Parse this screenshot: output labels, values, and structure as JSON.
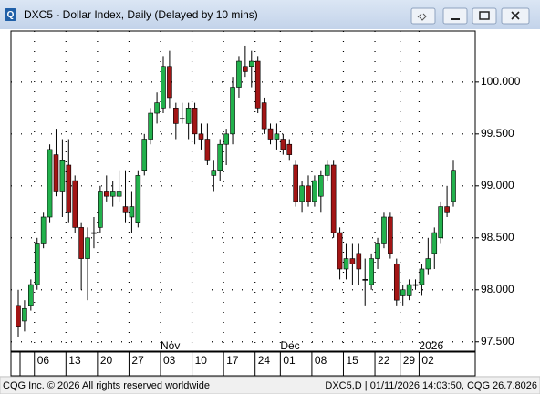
{
  "chart_data": {
    "type": "candlestick",
    "title": "DXC5 - Dollar Index, Daily (Delayed by 10 mins)",
    "categories": [
      null,
      null,
      null,
      "06",
      null,
      null,
      null,
      null,
      "13",
      null,
      null,
      null,
      null,
      "20",
      null,
      null,
      null,
      null,
      "27",
      null,
      null,
      null,
      null,
      "03",
      null,
      null,
      null,
      null,
      "10",
      null,
      null,
      null,
      null,
      "17",
      null,
      null,
      null,
      null,
      "24",
      null,
      null,
      null,
      "01",
      null,
      null,
      null,
      null,
      "08",
      null,
      null,
      null,
      null,
      "15",
      null,
      null,
      null,
      null,
      "22",
      null,
      null,
      null,
      "29",
      null,
      null,
      "02",
      null,
      null,
      null,
      null,
      null
    ],
    "period_labels": [
      null,
      null,
      null,
      null,
      null,
      null,
      null,
      null,
      null,
      null,
      null,
      null,
      null,
      null,
      null,
      null,
      null,
      null,
      null,
      null,
      null,
      null,
      null,
      "Nov",
      null,
      null,
      null,
      null,
      null,
      null,
      null,
      null,
      null,
      null,
      null,
      null,
      null,
      null,
      null,
      null,
      null,
      null,
      "Dec",
      null,
      null,
      null,
      null,
      null,
      null,
      null,
      null,
      null,
      null,
      null,
      null,
      null,
      null,
      null,
      null,
      null,
      null,
      null,
      null,
      null,
      "2026",
      null,
      null,
      null,
      null,
      null
    ],
    "open": [
      97.85,
      97.7,
      97.85,
      98.05,
      98.45,
      98.7,
      99.3,
      98.95,
      99.2,
      99.05,
      98.6,
      98.3,
      98.55,
      98.6,
      98.95,
      98.9,
      98.9,
      98.8,
      98.7,
      98.65,
      99.15,
      99.45,
      99.7,
      99.75,
      100.15,
      99.75,
      99.65,
      99.6,
      99.75,
      99.5,
      99.45,
      99.1,
      99.15,
      99.4,
      99.5,
      99.95,
      100.15,
      100.15,
      100.2,
      99.8,
      99.55,
      99.45,
      99.45,
      99.4,
      99.2,
      98.85,
      99.0,
      98.85,
      98.9,
      99.1,
      99.2,
      98.55,
      98.2,
      98.3,
      98.35,
      98.1,
      98.05,
      98.3,
      98.45,
      98.7,
      98.25,
      97.95,
      97.95,
      98.05,
      98.05,
      98.2,
      98.35,
      98.5,
      98.8,
      98.85
    ],
    "high": [
      98.0,
      97.9,
      98.1,
      98.5,
      98.75,
      99.4,
      99.55,
      99.45,
      99.45,
      99.1,
      98.65,
      98.6,
      98.7,
      99.0,
      99.1,
      99.05,
      99.15,
      99.15,
      98.95,
      99.15,
      99.5,
      99.75,
      99.9,
      100.25,
      100.3,
      99.8,
      99.8,
      99.8,
      99.8,
      99.6,
      99.6,
      99.25,
      99.45,
      99.55,
      100.05,
      100.25,
      100.35,
      100.3,
      100.25,
      99.85,
      99.6,
      99.6,
      99.5,
      99.45,
      99.25,
      99.05,
      99.1,
      99.1,
      99.15,
      99.25,
      99.25,
      98.6,
      98.45,
      98.45,
      98.45,
      98.3,
      98.35,
      98.5,
      98.75,
      98.75,
      98.3,
      98.05,
      98.1,
      98.1,
      98.25,
      98.5,
      98.6,
      98.85,
      99.0,
      99.25
    ],
    "low": [
      97.55,
      97.6,
      97.8,
      98.0,
      98.4,
      98.65,
      98.9,
      98.7,
      98.65,
      98.55,
      98.0,
      97.9,
      98.4,
      98.55,
      98.85,
      98.8,
      98.85,
      98.65,
      98.55,
      98.6,
      99.1,
      99.4,
      99.6,
      99.7,
      99.75,
      99.45,
      99.6,
      99.45,
      99.4,
      99.35,
      99.2,
      98.95,
      99.05,
      99.2,
      99.4,
      99.85,
      100.05,
      99.95,
      99.7,
      99.5,
      99.4,
      99.35,
      99.3,
      99.25,
      98.8,
      98.75,
      98.8,
      98.8,
      98.75,
      99.05,
      98.5,
      98.1,
      98.1,
      98.05,
      98.05,
      97.85,
      98.0,
      98.2,
      98.4,
      98.3,
      97.85,
      97.85,
      97.9,
      98.0,
      97.95,
      98.15,
      98.2,
      98.45,
      98.7,
      98.8
    ],
    "close": [
      97.65,
      97.82,
      98.05,
      98.45,
      98.7,
      99.35,
      98.95,
      99.25,
      98.75,
      98.6,
      98.3,
      98.5,
      98.55,
      98.95,
      98.9,
      98.95,
      98.95,
      98.75,
      98.8,
      99.1,
      99.45,
      99.7,
      99.8,
      100.15,
      99.85,
      99.6,
      99.65,
      99.75,
      99.5,
      99.45,
      99.25,
      99.15,
      99.4,
      99.5,
      99.95,
      100.2,
      100.1,
      100.2,
      99.75,
      99.55,
      99.45,
      99.5,
      99.35,
      99.3,
      98.85,
      99.0,
      98.85,
      99.05,
      99.1,
      99.2,
      98.55,
      98.2,
      98.3,
      98.25,
      98.2,
      98.1,
      98.3,
      98.45,
      98.7,
      98.35,
      97.9,
      98.0,
      98.05,
      98.05,
      98.2,
      98.3,
      98.55,
      98.8,
      98.75,
      99.15
    ],
    "up_color": "#22b14c",
    "down_color": "#a31515",
    "ylim": [
      97.41,
      100.49
    ],
    "yticks": [
      {
        "value": 97.5,
        "label": "97.500"
      },
      {
        "value": 98.0,
        "label": "98.000"
      },
      {
        "value": 98.5,
        "label": "98.500"
      },
      {
        "value": 99.0,
        "label": "99.000"
      },
      {
        "value": 99.5,
        "label": "99.500"
      },
      {
        "value": 100.0,
        "label": "100.000"
      }
    ],
    "grid": true
  },
  "footer": {
    "left": "CQG Inc. © 2026 All rights reserved worldwide",
    "right": "DXC5,D | 01/11/2026 14:03:50, CQG 26.7.8026"
  }
}
